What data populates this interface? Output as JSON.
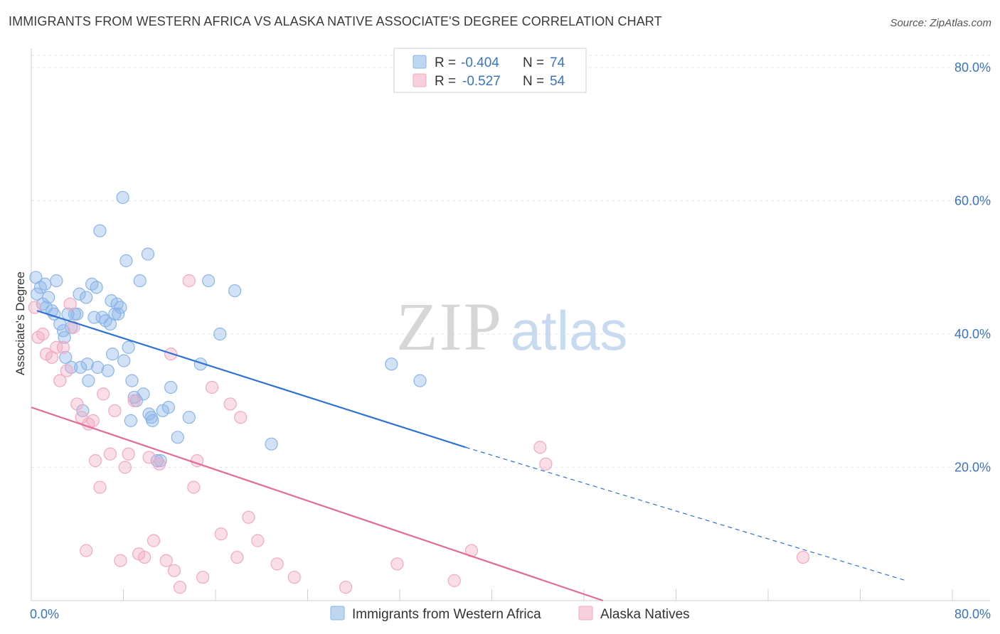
{
  "title": "IMMIGRANTS FROM WESTERN AFRICA VS ALASKA NATIVE ASSOCIATE'S DEGREE CORRELATION CHART",
  "source": "Source: ZipAtlas.com",
  "watermark": {
    "zip": "ZIP",
    "atlas": "atlas"
  },
  "chart_data": {
    "type": "scatter",
    "ylabel": "Associate's Degree",
    "xlim": [
      0,
      80
    ],
    "ylim": [
      0,
      80
    ],
    "x_ticks": [
      "0.0%",
      "80.0%"
    ],
    "y_ticks": [
      {
        "value": 20,
        "label": "20.0%"
      },
      {
        "value": 40,
        "label": "40.0%"
      },
      {
        "value": 60,
        "label": "60.0%"
      },
      {
        "value": 80,
        "label": "80.0%"
      }
    ],
    "grid": true,
    "legend_placement": "top-center",
    "stats": [
      {
        "r_label": "R =",
        "r": "-0.404",
        "n_label": "N =",
        "n": "74",
        "color": "#8ab4e8"
      },
      {
        "r_label": "R =",
        "r": "-0.527",
        "n_label": "N =",
        "n": "54",
        "color": "#f2a8c0"
      }
    ],
    "series": [
      {
        "name": "Immigrants from Western Africa",
        "color": "#8ab4e8",
        "line_color": "#2e72d2",
        "trend": {
          "x0": 0.5,
          "y0": 43.5,
          "x1": 38.0,
          "y1": 23.0,
          "x_dash_end": 76.5,
          "y_dash_end": 3.0
        },
        "points": [
          [
            0.4,
            48.5
          ],
          [
            0.5,
            46.0
          ],
          [
            0.8,
            47.0
          ],
          [
            1.0,
            44.5
          ],
          [
            1.2,
            47.5
          ],
          [
            1.3,
            44.0
          ],
          [
            1.5,
            45.5
          ],
          [
            1.8,
            43.5
          ],
          [
            2.0,
            43.0
          ],
          [
            2.2,
            48.0
          ],
          [
            2.5,
            41.5
          ],
          [
            2.8,
            40.5
          ],
          [
            2.9,
            39.5
          ],
          [
            3.0,
            36.5
          ],
          [
            3.2,
            43.0
          ],
          [
            3.5,
            41.0
          ],
          [
            3.5,
            35.0
          ],
          [
            3.8,
            43.0
          ],
          [
            4.0,
            43.0
          ],
          [
            4.2,
            46.0
          ],
          [
            4.3,
            35.0
          ],
          [
            4.5,
            28.5
          ],
          [
            4.8,
            45.5
          ],
          [
            4.9,
            35.5
          ],
          [
            5.0,
            33.0
          ],
          [
            5.3,
            47.5
          ],
          [
            5.5,
            42.5
          ],
          [
            5.7,
            47.0
          ],
          [
            5.8,
            35.0
          ],
          [
            6.0,
            55.5
          ],
          [
            6.2,
            42.5
          ],
          [
            6.5,
            42.0
          ],
          [
            6.7,
            34.5
          ],
          [
            6.9,
            41.5
          ],
          [
            7.0,
            45.0
          ],
          [
            7.1,
            37.0
          ],
          [
            7.3,
            43.0
          ],
          [
            7.5,
            44.5
          ],
          [
            7.6,
            43.0
          ],
          [
            7.8,
            44.0
          ],
          [
            8.0,
            60.5
          ],
          [
            8.1,
            36.0
          ],
          [
            8.3,
            51.0
          ],
          [
            8.5,
            38.0
          ],
          [
            8.7,
            27.0
          ],
          [
            8.8,
            33.0
          ],
          [
            9.0,
            30.5
          ],
          [
            9.2,
            30.0
          ],
          [
            9.5,
            48.0
          ],
          [
            9.8,
            31.0
          ],
          [
            10.2,
            52.0
          ],
          [
            10.3,
            28.0
          ],
          [
            10.5,
            27.5
          ],
          [
            10.6,
            27.0
          ],
          [
            11.0,
            21.0
          ],
          [
            11.3,
            21.0
          ],
          [
            11.5,
            28.5
          ],
          [
            12.0,
            29.0
          ],
          [
            12.2,
            32.0
          ],
          [
            12.8,
            24.5
          ],
          [
            13.8,
            27.5
          ],
          [
            14.8,
            35.5
          ],
          [
            15.5,
            48.0
          ],
          [
            16.5,
            40.0
          ],
          [
            17.8,
            46.5
          ],
          [
            21.0,
            23.5
          ],
          [
            31.5,
            35.5
          ],
          [
            34.0,
            33.0
          ]
        ]
      },
      {
        "name": "Alaska Natives",
        "color": "#f2a8c0",
        "line_color": "#e06b98",
        "trend": {
          "x0": 0,
          "y0": 29.0,
          "x1": 50.0,
          "y1": 0.0
        },
        "points": [
          [
            0.3,
            44.0
          ],
          [
            0.6,
            39.5
          ],
          [
            1.0,
            40.0
          ],
          [
            1.3,
            37.0
          ],
          [
            1.8,
            36.5
          ],
          [
            2.2,
            38.0
          ],
          [
            2.5,
            33.0
          ],
          [
            2.8,
            38.0
          ],
          [
            3.1,
            34.5
          ],
          [
            3.4,
            44.5
          ],
          [
            3.7,
            41.0
          ],
          [
            4.0,
            29.5
          ],
          [
            4.4,
            27.5
          ],
          [
            4.8,
            7.5
          ],
          [
            5.0,
            26.5
          ],
          [
            5.4,
            27.0
          ],
          [
            5.6,
            21.0
          ],
          [
            6.0,
            17.0
          ],
          [
            6.3,
            31.0
          ],
          [
            6.9,
            22.0
          ],
          [
            7.3,
            28.5
          ],
          [
            7.8,
            6.0
          ],
          [
            8.2,
            20.0
          ],
          [
            8.5,
            22.0
          ],
          [
            9.0,
            30.0
          ],
          [
            9.4,
            7.0
          ],
          [
            9.9,
            6.5
          ],
          [
            10.3,
            21.5
          ],
          [
            10.7,
            9.0
          ],
          [
            11.2,
            20.5
          ],
          [
            11.8,
            6.0
          ],
          [
            12.2,
            37.0
          ],
          [
            12.5,
            4.5
          ],
          [
            13.0,
            2.0
          ],
          [
            13.8,
            48.0
          ],
          [
            14.2,
            17.0
          ],
          [
            14.5,
            21.0
          ],
          [
            15.0,
            3.5
          ],
          [
            15.8,
            32.0
          ],
          [
            16.6,
            10.0
          ],
          [
            17.4,
            29.5
          ],
          [
            18.0,
            6.5
          ],
          [
            18.3,
            27.5
          ],
          [
            19.0,
            12.5
          ],
          [
            19.8,
            9.0
          ],
          [
            21.5,
            5.5
          ],
          [
            23.0,
            3.5
          ],
          [
            27.5,
            2.0
          ],
          [
            32.0,
            5.5
          ],
          [
            37.0,
            3.0
          ],
          [
            38.5,
            7.5
          ],
          [
            44.5,
            23.0
          ],
          [
            45.0,
            20.5
          ],
          [
            67.5,
            6.5
          ]
        ]
      }
    ]
  }
}
